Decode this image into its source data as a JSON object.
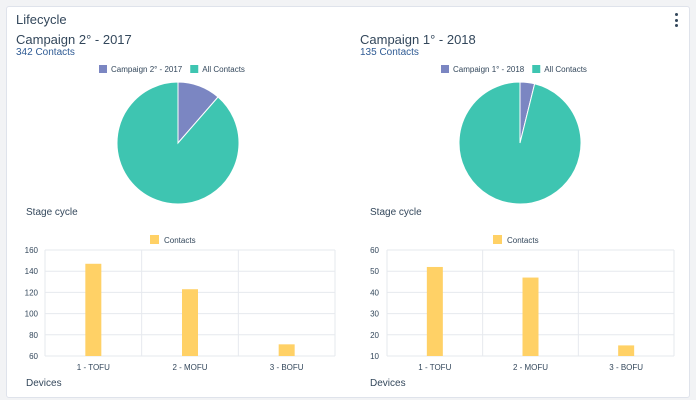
{
  "header": {
    "title": "Lifecycle",
    "menu_icon": "vertical-ellipsis-icon"
  },
  "campaigns": [
    {
      "title": "Campaign 2° - 2017",
      "contacts_link": "342 Contacts",
      "stage_cycle_label": "Stage cycle",
      "devices_label": "Devices"
    },
    {
      "title": "Campaign 1° - 2018",
      "contacts_link": "135 Contacts",
      "stage_cycle_label": "Stage cycle",
      "devices_label": "Devices"
    }
  ],
  "colors": {
    "campaign": "#7b86c2",
    "all_contacts": "#3ec5b1",
    "contacts_bar": "#ffd166"
  },
  "chart_data": [
    {
      "type": "pie",
      "legend": [
        "Campaign 2° - 2017",
        "All Contacts"
      ],
      "legend_position": "top",
      "values": [
        342,
        2658
      ]
    },
    {
      "type": "pie",
      "legend": [
        "Campaign 1° - 2018",
        "All Contacts"
      ],
      "legend_position": "top",
      "values": [
        135,
        3365
      ]
    },
    {
      "type": "bar",
      "legend": [
        "Contacts"
      ],
      "legend_position": "top",
      "categories": [
        "1 - TOFU",
        "2 - MOFU",
        "3 - BOFU"
      ],
      "values": [
        147,
        123,
        71
      ],
      "ylim": [
        60,
        160
      ],
      "yticks": [
        "60",
        "80",
        "100",
        "120",
        "140",
        "160"
      ],
      "grid": true
    },
    {
      "type": "bar",
      "legend": [
        "Contacts"
      ],
      "legend_position": "top",
      "categories": [
        "1 - TOFU",
        "2 - MOFU",
        "3 - BOFU"
      ],
      "values": [
        52,
        47,
        15
      ],
      "ylim": [
        10,
        60
      ],
      "yticks": [
        "10",
        "20",
        "30",
        "40",
        "50",
        "60"
      ],
      "grid": true
    }
  ]
}
